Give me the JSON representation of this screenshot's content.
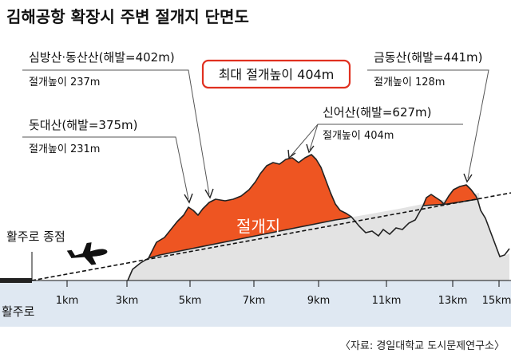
{
  "title": "김해공항 확장시 주변 절개지 단면도",
  "highlight": "최대 절개높이 404m",
  "callouts": {
    "simbang": {
      "name": "심방산·동산산(해발=402m)",
      "cut": "절개높이 237m"
    },
    "dotdae": {
      "name": "돗대산(해발=375m)",
      "cut": "절개높이 231m"
    },
    "sineo": {
      "name": "신어산(해발=627m)",
      "cut": "절개높이 404m"
    },
    "geumdong": {
      "name": "금동산(해발=441m)",
      "cut": "절개높이 128m"
    }
  },
  "cut_label": "절개지",
  "runway_end_label": "활주로 종점",
  "runway_label": "활주로",
  "km_ticks": [
    "1km",
    "3km",
    "5km",
    "7km",
    "9km",
    "11km",
    "13km",
    "15km"
  ],
  "source": "〈자료: 경일대학교 도시문제연구소〉",
  "colors": {
    "cut": "#ee5522",
    "ground": "#e3e3e3",
    "accent_box": "#e03020",
    "bottom_band": "#dfe8f2"
  }
}
